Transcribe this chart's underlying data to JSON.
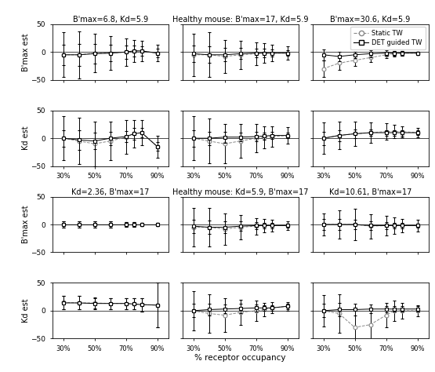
{
  "col_titles_top": [
    "B'max=6.8, Kd=5.9",
    "Healthy mouse: B'max=17, Kd=5.9",
    "B'max=30.6, Kd=5.9"
  ],
  "col_titles_bottom": [
    "Kd=2.36, B'max=17",
    "Healthy mouse: Kd=5.9, B'max=17",
    "Kd=10.61, B'max=17"
  ],
  "ylabel_bmax": "B'max est",
  "ylabel_kd": "Kd est",
  "xlabel": "% receptor occupancy",
  "xtick_labels": [
    "30%",
    "50%",
    "70%",
    "90%"
  ],
  "xtick_vals": [
    30,
    50,
    70,
    90
  ],
  "ylim": [
    -50,
    50
  ],
  "yticks": [
    -50,
    0,
    50
  ],
  "x_vals": [
    30,
    40,
    50,
    60,
    70,
    75,
    80,
    90
  ],
  "panels": {
    "r0c0": {
      "static_y": [
        -5,
        -5,
        -2,
        -2,
        0,
        2,
        2,
        -2
      ],
      "static_yerr": [
        40,
        42,
        35,
        30,
        25,
        20,
        18,
        15
      ],
      "det_y": [
        -5,
        -5,
        -3,
        -2,
        0,
        2,
        2,
        -2
      ],
      "det_yerr": [
        18,
        20,
        18,
        15,
        12,
        10,
        8,
        8
      ]
    },
    "r1c0": {
      "static_y": [
        0,
        -5,
        -10,
        -5,
        2,
        8,
        10,
        -15
      ],
      "static_yerr": [
        40,
        42,
        40,
        35,
        30,
        25,
        22,
        20
      ],
      "det_y": [
        0,
        -3,
        -5,
        0,
        3,
        8,
        10,
        -15
      ],
      "det_yerr": [
        15,
        18,
        15,
        12,
        10,
        10,
        8,
        8
      ]
    },
    "r0c1": {
      "static_y": [
        -5,
        -5,
        -8,
        -5,
        -3,
        -2,
        -2,
        -2
      ],
      "static_yerr": [
        38,
        40,
        30,
        25,
        20,
        18,
        15,
        12
      ],
      "det_y": [
        -3,
        -5,
        -5,
        -3,
        -2,
        -2,
        -2,
        -2
      ],
      "det_yerr": [
        15,
        15,
        12,
        10,
        8,
        8,
        6,
        5
      ]
    },
    "r1c1": {
      "static_y": [
        0,
        -5,
        -10,
        -5,
        0,
        2,
        3,
        5
      ],
      "static_yerr": [
        40,
        40,
        35,
        30,
        25,
        20,
        18,
        15
      ],
      "det_y": [
        0,
        0,
        2,
        2,
        3,
        4,
        5,
        5
      ],
      "det_yerr": [
        15,
        12,
        10,
        8,
        8,
        6,
        6,
        5
      ]
    },
    "r0c2": {
      "static_y": [
        -30,
        -20,
        -15,
        -10,
        -5,
        -3,
        -2,
        -2
      ],
      "static_yerr": [
        15,
        12,
        10,
        8,
        6,
        5,
        4,
        3
      ],
      "det_y": [
        -5,
        -8,
        -5,
        -3,
        -2,
        -2,
        -2,
        -2
      ],
      "det_yerr": [
        10,
        8,
        6,
        6,
        5,
        4,
        4,
        3
      ]
    },
    "r1c2": {
      "static_y": [
        0,
        5,
        8,
        10,
        12,
        12,
        12,
        10
      ],
      "static_yerr": [
        28,
        25,
        22,
        18,
        15,
        12,
        10,
        8
      ],
      "det_y": [
        0,
        5,
        8,
        10,
        10,
        10,
        10,
        10
      ],
      "det_yerr": [
        12,
        10,
        8,
        6,
        5,
        5,
        5,
        4
      ]
    },
    "r2c0": {
      "static_y": [
        0,
        0,
        0,
        0,
        0,
        0,
        0,
        0
      ],
      "static_yerr": [
        6,
        6,
        5,
        5,
        4,
        4,
        3,
        3
      ],
      "det_y": [
        0,
        0,
        0,
        0,
        0,
        0,
        0,
        0
      ],
      "det_yerr": [
        6,
        6,
        5,
        5,
        4,
        4,
        3,
        3
      ]
    },
    "r3c0": {
      "static_y": [
        15,
        14,
        14,
        13,
        13,
        12,
        11,
        10
      ],
      "static_yerr": [
        12,
        12,
        10,
        10,
        10,
        10,
        12,
        40
      ],
      "det_y": [
        14,
        14,
        13,
        13,
        13,
        12,
        11,
        10
      ],
      "det_yerr": [
        12,
        12,
        10,
        10,
        10,
        10,
        12,
        40
      ]
    },
    "r2c1": {
      "static_y": [
        -5,
        -5,
        -8,
        -5,
        -3,
        -2,
        -2,
        -2
      ],
      "static_yerr": [
        35,
        35,
        28,
        22,
        15,
        12,
        10,
        8
      ],
      "det_y": [
        -3,
        -5,
        -5,
        -3,
        -2,
        -2,
        -2,
        -2
      ],
      "det_yerr": [
        12,
        12,
        10,
        8,
        6,
        5,
        5,
        4
      ]
    },
    "r3c1": {
      "static_y": [
        0,
        -5,
        -8,
        -3,
        0,
        2,
        5,
        8
      ],
      "static_yerr": [
        35,
        35,
        30,
        22,
        18,
        12,
        10,
        8
      ],
      "det_y": [
        0,
        2,
        3,
        4,
        5,
        5,
        5,
        8
      ],
      "det_yerr": [
        12,
        10,
        8,
        8,
        6,
        5,
        5,
        5
      ]
    },
    "r2c2": {
      "static_y": [
        0,
        0,
        0,
        -3,
        -2,
        -2,
        -2,
        -2
      ],
      "static_yerr": [
        20,
        25,
        28,
        22,
        18,
        15,
        12,
        10
      ],
      "det_y": [
        0,
        0,
        0,
        -2,
        -2,
        -2,
        -2,
        -2
      ],
      "det_yerr": [
        10,
        10,
        8,
        8,
        6,
        5,
        5,
        4
      ]
    },
    "r3c2": {
      "static_y": [
        0,
        -5,
        -30,
        -25,
        -8,
        0,
        0,
        0
      ],
      "static_yerr": [
        28,
        35,
        35,
        28,
        22,
        18,
        14,
        10
      ],
      "det_y": [
        0,
        2,
        2,
        3,
        3,
        3,
        3,
        3
      ],
      "det_yerr": [
        12,
        12,
        10,
        8,
        6,
        5,
        5,
        5
      ]
    }
  }
}
